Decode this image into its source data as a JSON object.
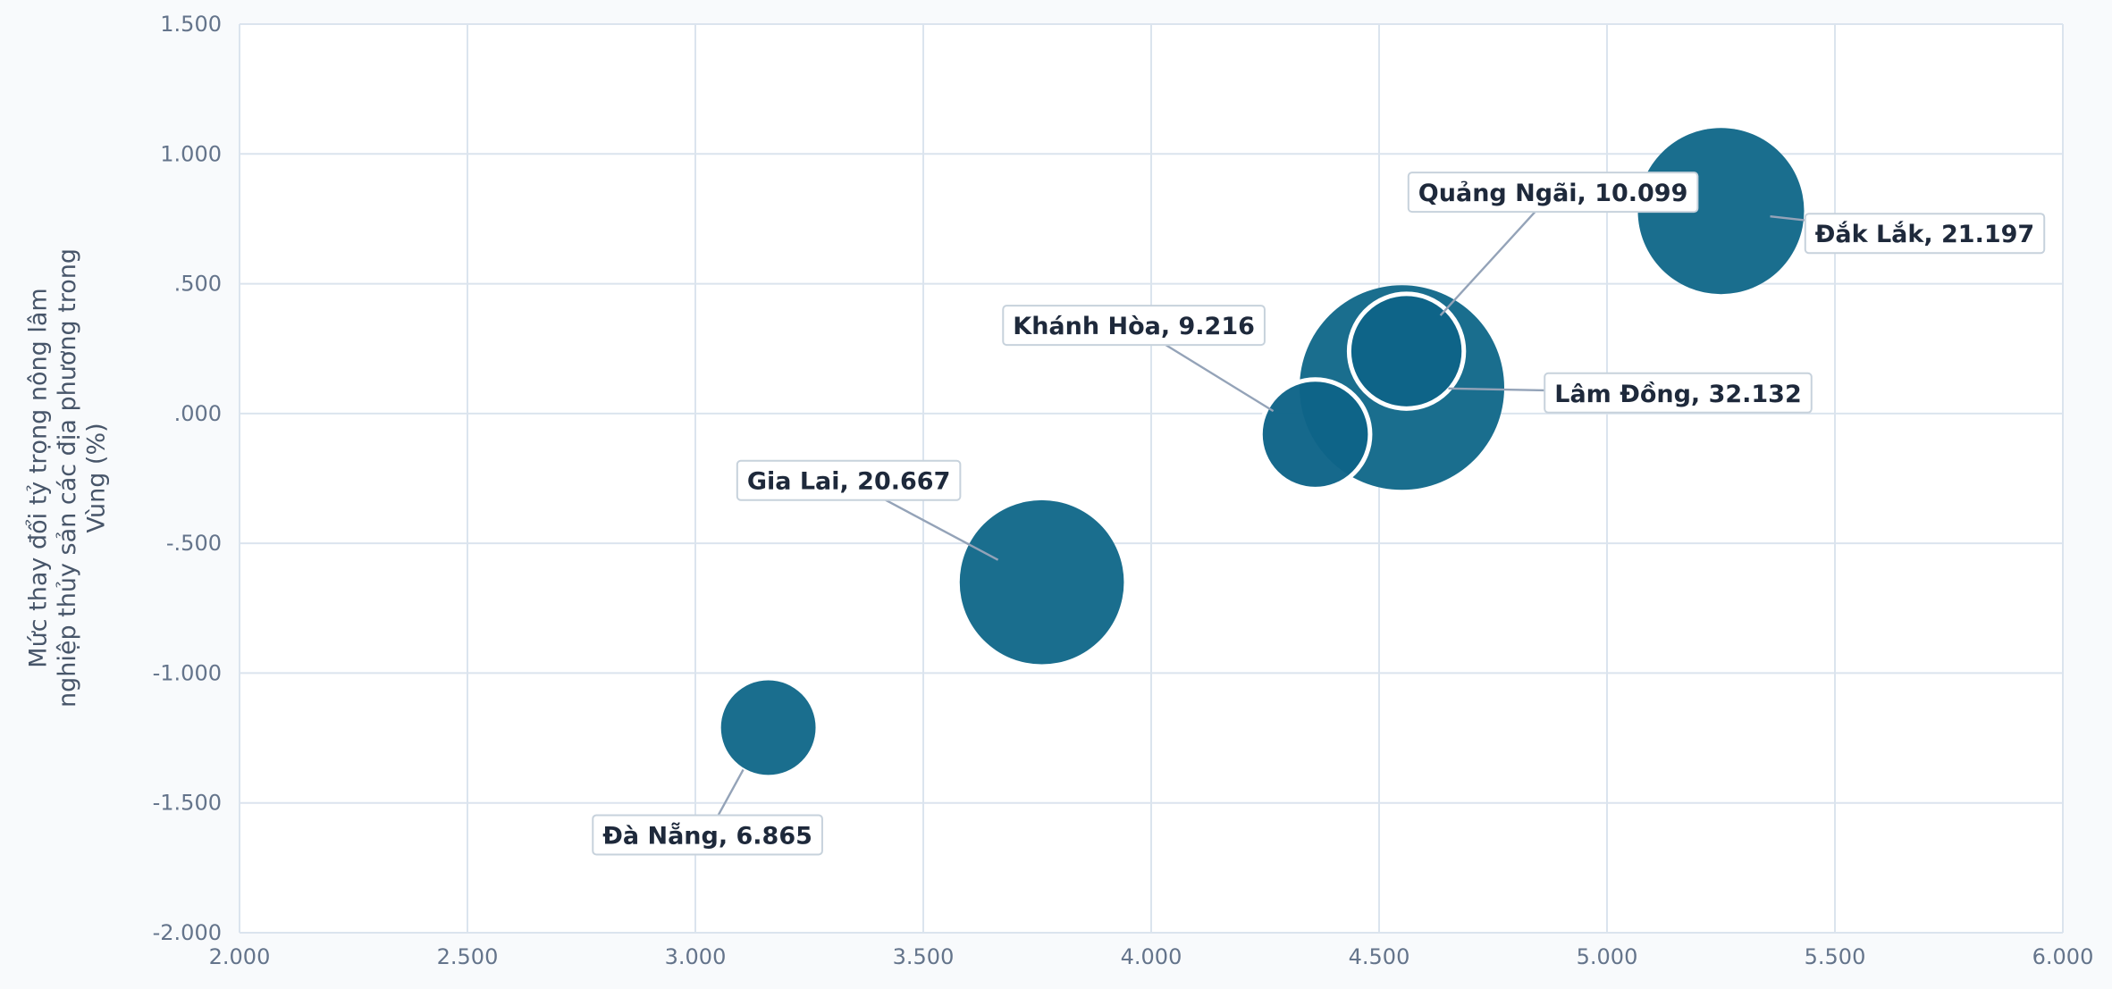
{
  "chart_data": {
    "type": "bubble",
    "title": "",
    "xlabel": "",
    "ylabel": "Mức thay đổi tỷ trọng nông lâm nghiệp thủy sản các địa phương trong Vùng (%)",
    "ylabel_lines": [
      "Mức thay đổi tỷ trọng nông lâm",
      "nghiệp thủy sản các địa phương trong",
      "Vùng (%)"
    ],
    "xlim": [
      2,
      6
    ],
    "ylim": [
      -2,
      1.5
    ],
    "x_ticks": [
      2,
      2.5,
      3,
      3.5,
      4,
      4.5,
      5,
      5.5,
      6
    ],
    "y_ticks": [
      -2,
      -1.5,
      -1,
      -0.5,
      0,
      0.5,
      1,
      1.5
    ],
    "x_tick_labels": [
      "2.000",
      "2.500",
      "3.000",
      "3.500",
      "4.000",
      "4.500",
      "5.000",
      "5.500",
      "6.000"
    ],
    "y_tick_labels": [
      "-2.000",
      "-1.500",
      "-1.000",
      "-.500",
      ".000",
      ".500",
      "1.000",
      "1.500"
    ],
    "grid": true,
    "bubble_color": "#1a6e8e",
    "highlight_color": "#0e6488",
    "points": [
      {
        "name": "Đà Nẵng",
        "x": 3.16,
        "y": -1.21,
        "size": 6.865,
        "label": "Đà Nẵng, 6.865",
        "highlight": false
      },
      {
        "name": "Gia Lai",
        "x": 3.76,
        "y": -0.65,
        "size": 20.667,
        "label": "Gia Lai, 20.667",
        "highlight": false
      },
      {
        "name": "Lâm Đồng",
        "x": 4.55,
        "y": 0.1,
        "size": 32.132,
        "label": "Lâm Đồng, 32.132",
        "highlight": false
      },
      {
        "name": "Khánh Hòa",
        "x": 4.36,
        "y": -0.08,
        "size": 9.216,
        "label": "Khánh Hòa, 9.216",
        "highlight": true
      },
      {
        "name": "Quảng Ngãi",
        "x": 4.56,
        "y": 0.24,
        "size": 10.099,
        "label": "Quảng Ngãi, 10.099",
        "highlight": true
      },
      {
        "name": "Đắk Lắk",
        "x": 5.25,
        "y": 0.78,
        "size": 21.197,
        "label": "Đắk Lắk, 21.197",
        "highlight": false
      }
    ]
  }
}
